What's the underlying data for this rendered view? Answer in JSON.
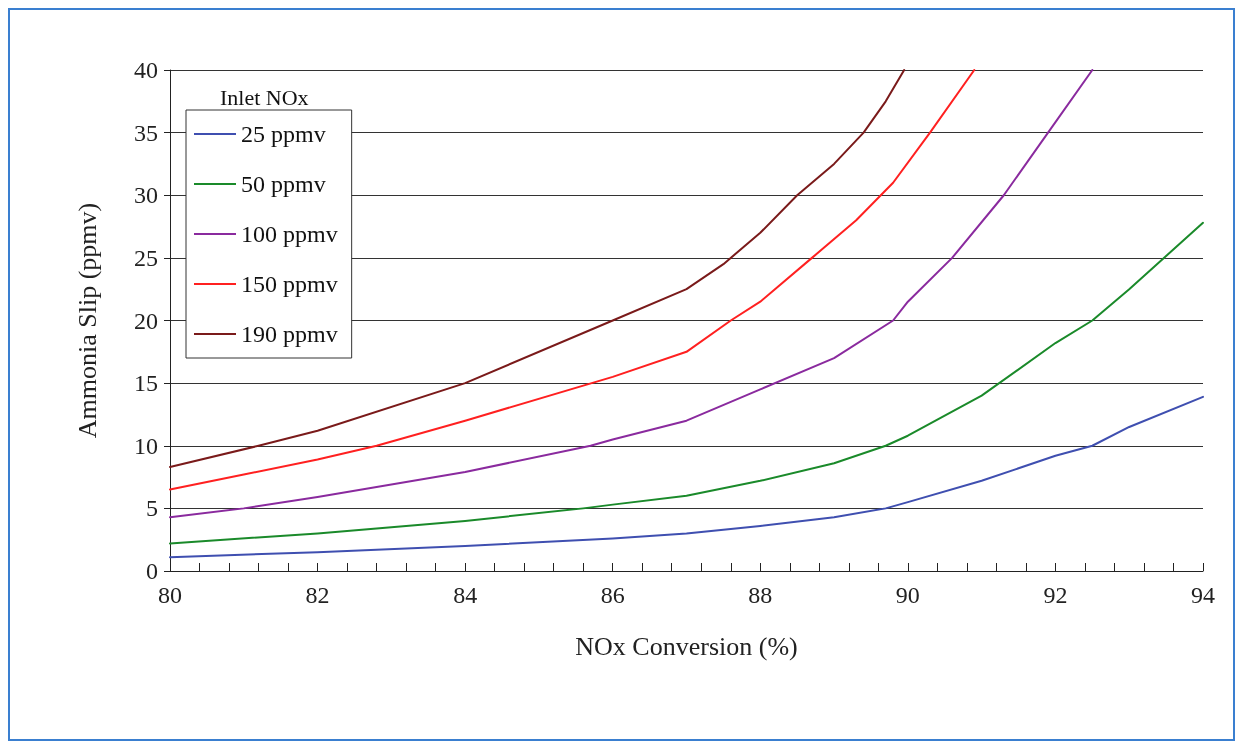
{
  "chart_data": {
    "type": "line",
    "xlabel": "NOx Conversion (%)",
    "ylabel": "Ammonia Slip (ppmv)",
    "legend_title": "Inlet NOx",
    "legend": "top left",
    "grid": "y",
    "line_style": "solid",
    "marker": "none",
    "xlim": [
      80,
      94
    ],
    "ylim": [
      0,
      40
    ],
    "xticks": [
      80,
      {
        "value": 80.4,
        "label": null
      },
      {
        "value": 80.8,
        "label": null
      },
      {
        "value": 81.2,
        "label": null
      },
      {
        "value": 81.6,
        "label": null
      },
      82,
      {
        "value": 82.4,
        "label": null
      },
      {
        "value": 82.8,
        "label": null
      },
      {
        "value": 83.2,
        "label": null
      },
      {
        "value": 83.6,
        "label": null
      },
      84,
      {
        "value": 84.4,
        "label": null
      },
      {
        "value": 84.8,
        "label": null
      },
      {
        "value": 85.2,
        "label": null
      },
      {
        "value": 85.6,
        "label": null
      },
      86,
      {
        "value": 86.4,
        "label": null
      },
      {
        "value": 86.8,
        "label": null
      },
      {
        "value": 87.2,
        "label": null
      },
      {
        "value": 87.6,
        "label": null
      },
      88,
      {
        "value": 88.4,
        "label": null
      },
      {
        "value": 88.8,
        "label": null
      },
      {
        "value": 89.2,
        "label": null
      },
      {
        "value": 89.6,
        "label": null
      },
      90,
      {
        "value": 90.4,
        "label": null
      },
      {
        "value": 90.8,
        "label": null
      },
      {
        "value": 91.2,
        "label": null
      },
      {
        "value": 91.6,
        "label": null
      },
      92,
      {
        "value": 92.4,
        "label": null
      },
      {
        "value": 92.8,
        "label": null
      },
      {
        "value": 93.2,
        "label": null
      },
      {
        "value": 93.6,
        "label": null
      },
      94
    ],
    "yticks": [
      0,
      5,
      10,
      15,
      20,
      25,
      30,
      35,
      40
    ],
    "series": [
      {
        "name": "25 ppmv",
        "color": "#3f4fb0",
        "x": [
          80,
          82,
          84,
          86,
          87,
          88,
          89,
          89.7,
          90,
          91,
          92,
          92.5,
          93,
          94
        ],
        "values": [
          1.1,
          1.5,
          2.0,
          2.6,
          3.0,
          3.6,
          4.3,
          5,
          5.5,
          7.2,
          9.2,
          10,
          11.5,
          13.9
        ]
      },
      {
        "name": "50 ppmv",
        "color": "#1a8a2a",
        "x": [
          80,
          82,
          84,
          85.6,
          86,
          87,
          88,
          89,
          89.7,
          90,
          91,
          92,
          92.5,
          93,
          94
        ],
        "values": [
          2.2,
          3.0,
          4.0,
          5,
          5.3,
          6.0,
          7.2,
          8.6,
          10,
          10.8,
          14,
          18.2,
          20,
          22.5,
          27.8
        ]
      },
      {
        "name": "100 ppmv",
        "color": "#8a2a9e",
        "x": [
          80,
          81,
          82,
          84,
          85.7,
          86,
          87,
          88,
          89,
          89.8,
          90,
          90.6,
          91.3,
          91.9,
          92.5
        ],
        "values": [
          4.3,
          5,
          5.9,
          7.9,
          10,
          10.5,
          12,
          14.5,
          17,
          20,
          21.5,
          25,
          30,
          35,
          40
        ]
      },
      {
        "name": "150 ppmv",
        "color": "#ff2020",
        "x": [
          80,
          81,
          82,
          82.8,
          84,
          86,
          87,
          87.6,
          88,
          88.7,
          89.3,
          89.8,
          90.3,
          90.9
        ],
        "values": [
          6.5,
          7.7,
          8.9,
          10,
          12,
          15.5,
          17.5,
          20,
          21.5,
          25,
          28,
          31,
          35,
          40
        ]
      },
      {
        "name": "190 ppmv",
        "color": "#7a1a1a",
        "x": [
          80,
          81.2,
          82,
          84,
          86,
          87,
          87.5,
          88,
          88.5,
          89,
          89.4,
          89.7,
          89.95
        ],
        "values": [
          8.3,
          10,
          11.2,
          15,
          20,
          22.5,
          24.5,
          27,
          30,
          32.5,
          35,
          37.5,
          40
        ]
      }
    ]
  }
}
